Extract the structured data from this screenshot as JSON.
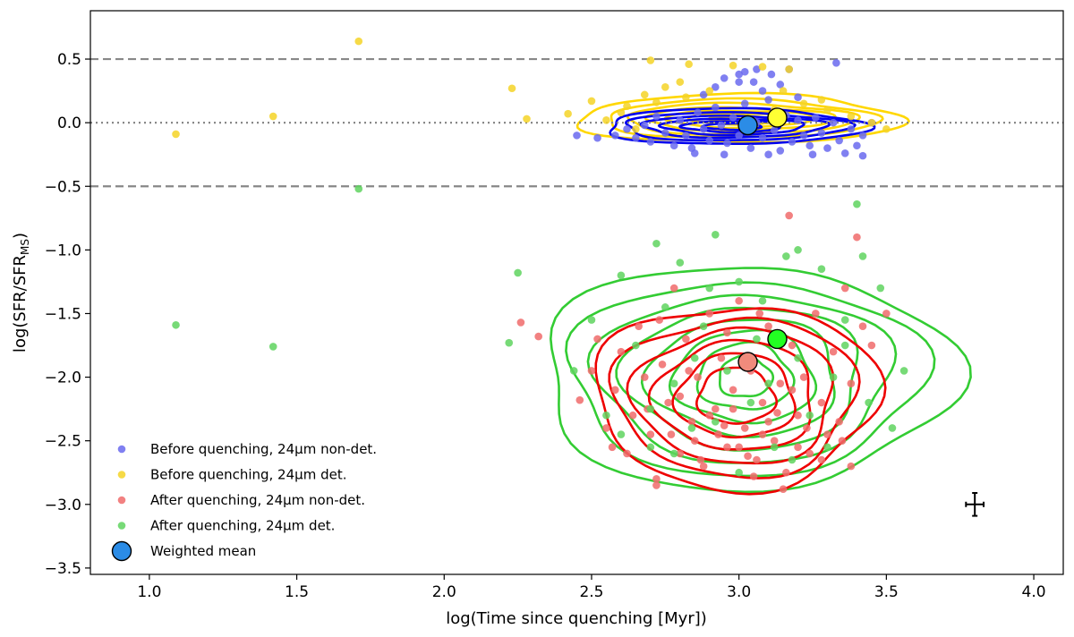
{
  "chart_data": {
    "type": "scatter",
    "xlabel": "log(Time since quenching [Myr])",
    "ylabel": "log(SFR/SFR",
    "ylabel_sub": "MS",
    "ylabel_close": ")",
    "xlim": [
      0.8,
      4.1
    ],
    "ylim": [
      -3.55,
      0.88
    ],
    "xticks": [
      1.0,
      1.5,
      2.0,
      2.5,
      3.0,
      3.5,
      4.0
    ],
    "xtick_labels": [
      "1.0",
      "1.5",
      "2.0",
      "2.5",
      "3.0",
      "3.5",
      "4.0"
    ],
    "yticks": [
      0.5,
      0.0,
      -0.5,
      -1.0,
      -1.5,
      -2.0,
      -2.5,
      -3.0,
      -3.5
    ],
    "ytick_labels": [
      "0.5",
      "0.0",
      "−0.5",
      "−1.0",
      "−1.5",
      "−2.0",
      "−2.5",
      "−3.0",
      "−3.5"
    ],
    "reference_lines": [
      {
        "y": 0.5,
        "style": "dashed",
        "color": "#888888"
      },
      {
        "y": 0.0,
        "style": "dotted",
        "color": "#888888"
      },
      {
        "y": -0.5,
        "style": "dashed",
        "color": "#888888"
      }
    ],
    "series": [
      {
        "name": "Before quenching, 24μm non-det.",
        "color": "#6a6aef",
        "points": [
          [
            2.58,
            -0.1
          ],
          [
            2.62,
            -0.05
          ],
          [
            2.65,
            -0.12
          ],
          [
            2.68,
            -0.02
          ],
          [
            2.7,
            -0.15
          ],
          [
            2.72,
            0.05
          ],
          [
            2.75,
            -0.08
          ],
          [
            2.78,
            -0.18
          ],
          [
            2.8,
            0.02
          ],
          [
            2.82,
            -0.1
          ],
          [
            2.84,
            -0.2
          ],
          [
            2.86,
            0.08
          ],
          [
            2.88,
            -0.05
          ],
          [
            2.9,
            -0.14
          ],
          [
            2.92,
            0.12
          ],
          [
            2.94,
            -0.02
          ],
          [
            2.96,
            -0.16
          ],
          [
            2.98,
            0.04
          ],
          [
            3.0,
            -0.1
          ],
          [
            3.02,
            0.15
          ],
          [
            3.04,
            -0.2
          ],
          [
            3.06,
            0.0
          ],
          [
            3.08,
            -0.12
          ],
          [
            3.1,
            0.18
          ],
          [
            3.12,
            -0.06
          ],
          [
            3.14,
            -0.22
          ],
          [
            3.16,
            0.06
          ],
          [
            3.18,
            -0.15
          ],
          [
            3.2,
            0.02
          ],
          [
            3.22,
            -0.1
          ],
          [
            3.24,
            -0.18
          ],
          [
            3.26,
            0.04
          ],
          [
            3.28,
            -0.08
          ],
          [
            3.3,
            -0.2
          ],
          [
            3.32,
            0.0
          ],
          [
            3.34,
            -0.14
          ],
          [
            3.36,
            -0.24
          ],
          [
            3.38,
            -0.05
          ],
          [
            3.4,
            -0.18
          ],
          [
            3.42,
            -0.1
          ],
          [
            3.45,
            0.0
          ],
          [
            2.88,
            0.22
          ],
          [
            2.92,
            0.28
          ],
          [
            2.95,
            0.35
          ],
          [
            3.0,
            0.38
          ],
          [
            3.02,
            0.4
          ],
          [
            3.05,
            0.32
          ],
          [
            3.08,
            0.25
          ],
          [
            3.11,
            0.38
          ],
          [
            3.14,
            0.3
          ],
          [
            3.17,
            0.42
          ],
          [
            3.2,
            0.2
          ],
          [
            3.0,
            0.32
          ],
          [
            3.06,
            0.42
          ],
          [
            3.33,
            0.47
          ],
          [
            2.52,
            -0.12
          ],
          [
            2.45,
            -0.1
          ],
          [
            3.1,
            -0.25
          ],
          [
            3.25,
            -0.25
          ],
          [
            3.42,
            -0.26
          ],
          [
            2.85,
            -0.24
          ],
          [
            2.95,
            -0.25
          ]
        ]
      },
      {
        "name": "Before quenching, 24μm det.",
        "color": "#f5d327",
        "points": [
          [
            1.09,
            -0.09
          ],
          [
            1.42,
            0.05
          ],
          [
            1.71,
            0.64
          ],
          [
            2.23,
            0.27
          ],
          [
            2.7,
            0.49
          ],
          [
            2.83,
            0.46
          ],
          [
            2.98,
            0.45
          ],
          [
            3.08,
            0.44
          ],
          [
            3.17,
            0.42
          ],
          [
            2.28,
            0.03
          ],
          [
            2.42,
            0.07
          ],
          [
            2.5,
            0.17
          ],
          [
            2.55,
            0.02
          ],
          [
            2.62,
            0.13
          ],
          [
            2.68,
            0.22
          ],
          [
            2.75,
            0.28
          ],
          [
            2.82,
            0.2
          ],
          [
            2.9,
            0.25
          ],
          [
            3.15,
            0.25
          ],
          [
            3.22,
            0.15
          ],
          [
            3.3,
            0.1
          ],
          [
            3.38,
            0.05
          ],
          [
            3.45,
            0.0
          ],
          [
            3.5,
            -0.05
          ],
          [
            2.65,
            -0.05
          ],
          [
            2.72,
            0.16
          ],
          [
            2.6,
            0.08
          ],
          [
            3.12,
            0.1
          ],
          [
            3.28,
            0.18
          ],
          [
            2.8,
            0.32
          ]
        ]
      },
      {
        "name": "After quenching, 24μm non-det.",
        "color": "#f06b6b",
        "points": [
          [
            2.26,
            -1.57
          ],
          [
            2.32,
            -1.68
          ],
          [
            2.46,
            -2.18
          ],
          [
            2.5,
            -1.95
          ],
          [
            2.55,
            -2.4
          ],
          [
            2.58,
            -2.1
          ],
          [
            2.6,
            -1.8
          ],
          [
            2.62,
            -2.6
          ],
          [
            2.64,
            -2.3
          ],
          [
            2.66,
            -1.6
          ],
          [
            2.68,
            -2.0
          ],
          [
            2.7,
            -2.45
          ],
          [
            2.72,
            -2.8
          ],
          [
            2.74,
            -1.9
          ],
          [
            2.76,
            -2.2
          ],
          [
            2.78,
            -1.3
          ],
          [
            2.8,
            -2.6
          ],
          [
            2.82,
            -1.7
          ],
          [
            2.84,
            -2.35
          ],
          [
            2.86,
            -2.0
          ],
          [
            2.88,
            -2.7
          ],
          [
            2.9,
            -1.5
          ],
          [
            2.92,
            -2.25
          ],
          [
            2.94,
            -1.85
          ],
          [
            2.96,
            -2.55
          ],
          [
            2.98,
            -2.1
          ],
          [
            3.0,
            -1.4
          ],
          [
            3.02,
            -2.4
          ],
          [
            3.04,
            -1.95
          ],
          [
            3.06,
            -2.65
          ],
          [
            3.08,
            -2.2
          ],
          [
            3.1,
            -1.6
          ],
          [
            3.12,
            -2.5
          ],
          [
            3.14,
            -2.05
          ],
          [
            3.16,
            -2.75
          ],
          [
            3.18,
            -1.75
          ],
          [
            3.2,
            -2.3
          ],
          [
            3.22,
            -2.0
          ],
          [
            3.24,
            -2.6
          ],
          [
            3.26,
            -1.5
          ],
          [
            3.28,
            -2.2
          ],
          [
            3.3,
            -2.45
          ],
          [
            3.32,
            -1.8
          ],
          [
            3.34,
            -2.35
          ],
          [
            3.36,
            -1.3
          ],
          [
            3.38,
            -2.05
          ],
          [
            3.4,
            -0.9
          ],
          [
            3.42,
            -1.6
          ],
          [
            3.17,
            -0.73
          ],
          [
            3.15,
            -2.88
          ],
          [
            2.72,
            -2.85
          ],
          [
            3.05,
            -2.78
          ],
          [
            2.85,
            -2.5
          ],
          [
            2.95,
            -2.38
          ],
          [
            3.08,
            -2.45
          ],
          [
            3.0,
            -2.55
          ],
          [
            2.9,
            -2.3
          ],
          [
            3.1,
            -2.35
          ],
          [
            2.8,
            -2.15
          ],
          [
            3.2,
            -2.55
          ],
          [
            2.98,
            -2.25
          ],
          [
            3.03,
            -2.62
          ],
          [
            2.93,
            -2.45
          ],
          [
            3.13,
            -2.28
          ],
          [
            2.87,
            -2.65
          ],
          [
            3.23,
            -2.4
          ],
          [
            2.83,
            -1.95
          ],
          [
            3.18,
            -2.1
          ],
          [
            2.77,
            -2.45
          ],
          [
            3.28,
            -2.65
          ],
          [
            2.69,
            -2.25
          ],
          [
            3.35,
            -2.5
          ],
          [
            3.45,
            -1.75
          ],
          [
            3.5,
            -1.5
          ],
          [
            2.57,
            -2.55
          ],
          [
            2.52,
            -1.7
          ],
          [
            3.38,
            -2.7
          ],
          [
            2.96,
            -1.65
          ],
          [
            3.07,
            -1.5
          ],
          [
            2.73,
            -1.55
          ]
        ]
      },
      {
        "name": "After quenching, 24μm det.",
        "color": "#5fd35f",
        "points": [
          [
            1.09,
            -1.59
          ],
          [
            1.42,
            -1.76
          ],
          [
            1.71,
            -0.52
          ],
          [
            2.22,
            -1.73
          ],
          [
            2.25,
            -1.18
          ],
          [
            2.44,
            -1.95
          ],
          [
            2.5,
            -1.55
          ],
          [
            2.55,
            -2.3
          ],
          [
            2.6,
            -1.2
          ],
          [
            2.65,
            -1.75
          ],
          [
            2.7,
            -2.55
          ],
          [
            2.72,
            -0.95
          ],
          [
            2.75,
            -1.45
          ],
          [
            2.78,
            -2.05
          ],
          [
            2.8,
            -1.1
          ],
          [
            2.84,
            -2.4
          ],
          [
            2.88,
            -1.6
          ],
          [
            2.92,
            -0.88
          ],
          [
            2.96,
            -1.95
          ],
          [
            3.0,
            -1.25
          ],
          [
            3.04,
            -2.2
          ],
          [
            3.08,
            -1.4
          ],
          [
            3.12,
            -2.55
          ],
          [
            3.16,
            -1.05
          ],
          [
            3.2,
            -1.85
          ],
          [
            3.24,
            -2.3
          ],
          [
            3.28,
            -1.15
          ],
          [
            3.32,
            -2.0
          ],
          [
            3.36,
            -1.55
          ],
          [
            3.4,
            -0.64
          ],
          [
            3.44,
            -2.2
          ],
          [
            3.48,
            -1.3
          ],
          [
            3.52,
            -2.4
          ],
          [
            3.56,
            -1.95
          ],
          [
            3.36,
            -1.75
          ],
          [
            3.0,
            -2.75
          ],
          [
            2.85,
            -1.85
          ],
          [
            3.18,
            -2.65
          ],
          [
            2.92,
            -2.35
          ],
          [
            3.1,
            -2.05
          ],
          [
            2.7,
            -2.25
          ],
          [
            3.3,
            -2.55
          ],
          [
            2.78,
            -2.6
          ],
          [
            3.2,
            -1.0
          ],
          [
            2.6,
            -2.45
          ],
          [
            3.42,
            -1.05
          ],
          [
            2.9,
            -1.3
          ],
          [
            3.06,
            -1.7
          ]
        ]
      }
    ],
    "weighted_means": [
      {
        "name": "before_non_det",
        "x": 3.03,
        "y": -0.02,
        "color": "#2b8ce6"
      },
      {
        "name": "before_det",
        "x": 3.13,
        "y": 0.04,
        "color": "#ffff33"
      },
      {
        "name": "after_non_det",
        "x": 3.03,
        "y": -1.88,
        "color": "#f08b7c"
      },
      {
        "name": "after_det",
        "x": 3.13,
        "y": -1.7,
        "color": "#22ff22"
      }
    ],
    "contours": [
      {
        "group": "before",
        "color": "#ffd700",
        "center": [
          3.0,
          0.03
        ],
        "radii": [
          [
            0.55,
            0.19
          ],
          [
            0.46,
            0.15
          ],
          [
            0.39,
            0.12
          ],
          [
            0.32,
            0.09
          ],
          [
            0.25,
            0.065
          ],
          [
            0.17,
            0.042
          ],
          [
            0.1,
            0.02
          ]
        ]
      },
      {
        "group": "before",
        "color": "#0000ee",
        "center": [
          2.98,
          -0.03
        ],
        "radii": [
          [
            0.44,
            0.14
          ],
          [
            0.38,
            0.11
          ],
          [
            0.31,
            0.085
          ],
          [
            0.24,
            0.063
          ],
          [
            0.17,
            0.043
          ],
          [
            0.1,
            0.025
          ]
        ]
      },
      {
        "group": "after",
        "color": "#33cc33",
        "center": [
          3.02,
          -2.0
        ],
        "radii": [
          [
            0.7,
            0.88
          ],
          [
            0.6,
            0.76
          ],
          [
            0.5,
            0.66
          ],
          [
            0.4,
            0.56
          ],
          [
            0.32,
            0.46
          ],
          [
            0.24,
            0.36
          ],
          [
            0.16,
            0.26
          ],
          [
            0.09,
            0.16
          ]
        ]
      },
      {
        "group": "after",
        "color": "#ee0000",
        "center": [
          2.99,
          -2.15
        ],
        "radii": [
          [
            0.48,
            0.72
          ],
          [
            0.41,
            0.62
          ],
          [
            0.34,
            0.53
          ],
          [
            0.27,
            0.43
          ],
          [
            0.2,
            0.33
          ],
          [
            0.13,
            0.22
          ]
        ]
      }
    ],
    "error_bar": {
      "x": 3.8,
      "y": -3.0,
      "xerr": 0.03,
      "yerr": 0.09
    },
    "legend": {
      "placement": "lower-left",
      "entries": [
        {
          "label": "Before quenching, 24μm non-det.",
          "color": "#6a6aef",
          "marker": "small"
        },
        {
          "label": "Before quenching, 24μm det.",
          "color": "#f5d327",
          "marker": "small"
        },
        {
          "label": "After quenching, 24μm non-det.",
          "color": "#f06b6b",
          "marker": "small"
        },
        {
          "label": "After quenching, 24μm det.",
          "color": "#5fd35f",
          "marker": "small"
        },
        {
          "label": "Weighted mean",
          "color": "#2b8ce6",
          "marker": "large"
        }
      ]
    }
  }
}
